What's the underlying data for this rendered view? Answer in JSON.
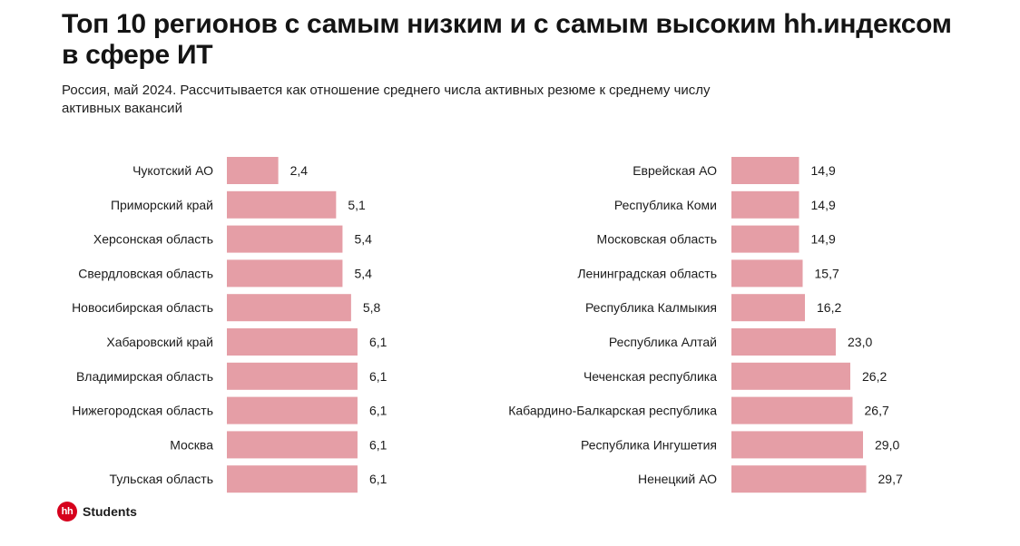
{
  "header": {
    "title": "Топ 10 регионов с самым низким и с самым высоким hh.индексом в сфере ИТ",
    "subtitle": "Россия, май 2024. Рассчитывается как отношение среднего числа активных резюме к среднему числу активных вакансий"
  },
  "logo": {
    "mark": "hh",
    "text": "Students"
  },
  "colors": {
    "bar": "#e59ea6",
    "text": "#1b1b1b",
    "logo": "#d6001c"
  },
  "chart_data": [
    {
      "type": "bar",
      "orientation": "horizontal",
      "name": "lowest",
      "categories": [
        "Чукотский АО",
        "Приморский край",
        "Херсонская область",
        "Свердловская область",
        "Новосибирская область",
        "Хабаровский край",
        "Владимирская область",
        "Нижегородская область",
        "Москва",
        "Тульская область"
      ],
      "values": [
        2.4,
        5.1,
        5.4,
        5.4,
        5.8,
        6.1,
        6.1,
        6.1,
        6.1,
        6.1
      ],
      "value_labels": [
        "2,4",
        "5,1",
        "5,4",
        "5,4",
        "5,8",
        "6,1",
        "6,1",
        "6,1",
        "6,1",
        "6,1"
      ]
    },
    {
      "type": "bar",
      "orientation": "horizontal",
      "name": "highest",
      "categories": [
        "Еврейская АО",
        "Республика Коми",
        "Московская область",
        "Ленинградская область",
        "Республика Калмыкия",
        "Республика Алтай",
        "Чеченская республика",
        "Кабардино-Балкарская республика",
        "Республика Ингушетия",
        "Ненецкий АО"
      ],
      "values": [
        14.9,
        14.9,
        14.9,
        15.7,
        16.2,
        23.0,
        26.2,
        26.7,
        29.0,
        29.7
      ],
      "value_labels": [
        "14,9",
        "14,9",
        "14,9",
        "15,7",
        "16,2",
        "23,0",
        "26,2",
        "26,7",
        "29,0",
        "29,7"
      ]
    }
  ]
}
